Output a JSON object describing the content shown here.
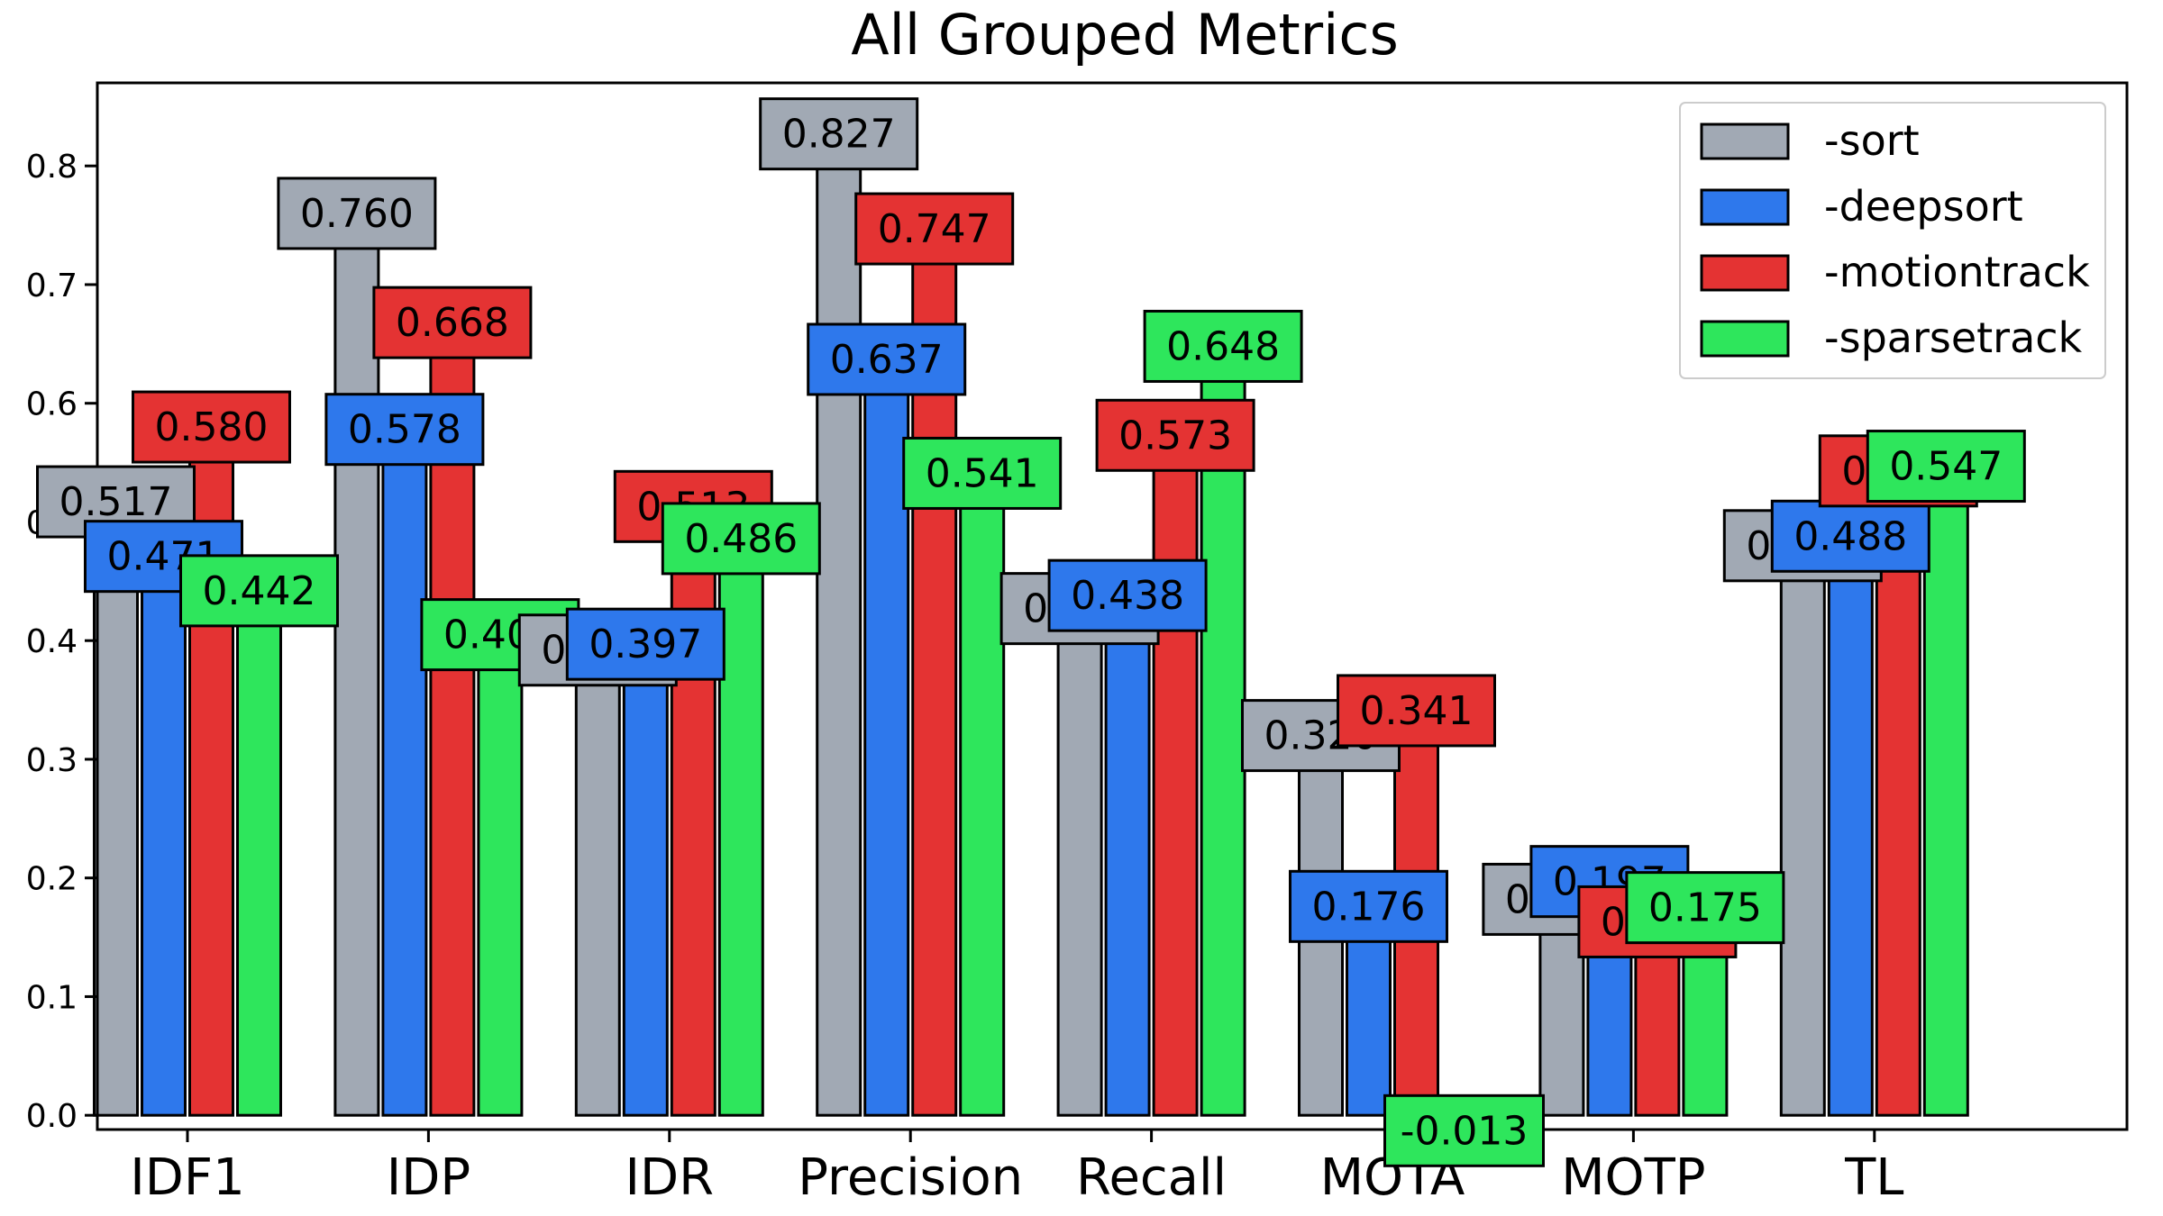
{
  "chart_data": {
    "type": "bar",
    "title": "All Grouped Metrics",
    "xlabel": "",
    "ylabel": "",
    "categories": [
      "IDF1",
      "IDP",
      "IDR",
      "Precision",
      "Recall",
      "MOTA",
      "MOTP",
      "TL"
    ],
    "series": [
      {
        "name": "-sort",
        "color": "#a1a9b4",
        "values": [
          0.517,
          0.76,
          0.392,
          0.827,
          0.427,
          0.32,
          0.182,
          0.48
        ]
      },
      {
        "name": "-deepsort",
        "color": "#2e78ec",
        "values": [
          0.471,
          0.578,
          0.397,
          0.637,
          0.438,
          0.176,
          0.197,
          0.488
        ]
      },
      {
        "name": "-motiontrack",
        "color": "#e43333",
        "values": [
          0.58,
          0.668,
          0.513,
          0.747,
          0.573,
          0.341,
          0.163,
          0.543
        ]
      },
      {
        "name": "-sparsetrack",
        "color": "#2ee65c",
        "values": [
          0.442,
          0.405,
          0.486,
          0.541,
          0.648,
          -0.013,
          0.175,
          0.547
        ]
      }
    ],
    "value_label_format": "3 decimals",
    "ylim": [
      -0.012,
      0.87
    ],
    "yticks": [
      "0.0",
      "0.1",
      "0.2",
      "0.3",
      "0.4",
      "0.5",
      "0.6",
      "0.7",
      "0.8"
    ],
    "grid": false,
    "legend_position": "upper right"
  }
}
